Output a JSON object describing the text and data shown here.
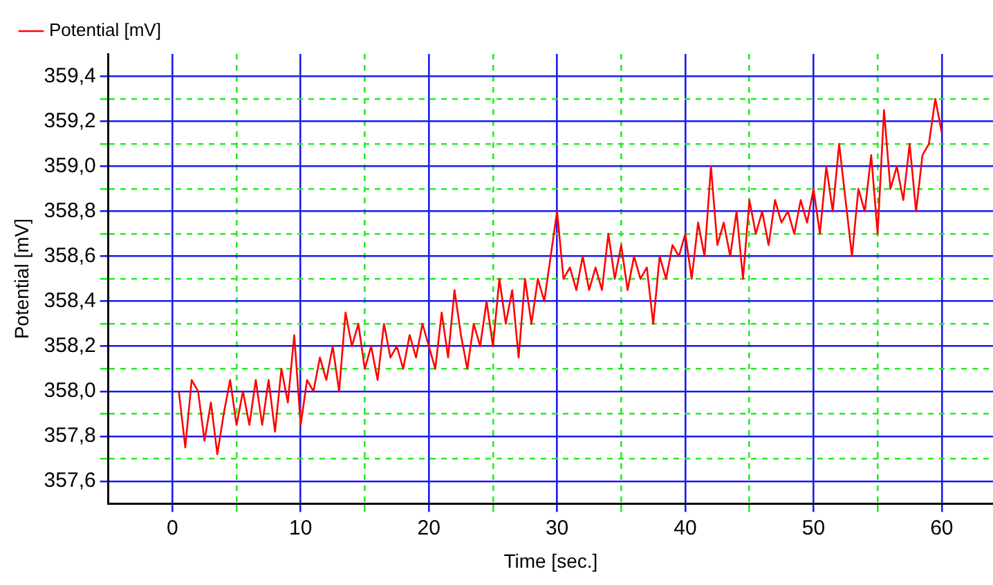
{
  "chart_data": {
    "type": "line",
    "xlabel": "Time [sec.]",
    "ylabel": "Potential [mV]",
    "x": [
      0.5,
      1,
      1.5,
      2,
      2.5,
      3,
      3.5,
      4,
      4.5,
      5,
      5.5,
      6,
      6.5,
      7,
      7.5,
      8,
      8.5,
      9,
      9.5,
      10,
      10.5,
      11,
      11.5,
      12,
      12.5,
      13,
      13.5,
      14,
      14.5,
      15,
      15.5,
      16,
      16.5,
      17,
      17.5,
      18,
      18.5,
      19,
      19.5,
      20,
      20.5,
      21,
      21.5,
      22,
      22.5,
      23,
      23.5,
      24,
      24.5,
      25,
      25.5,
      26,
      26.5,
      27,
      27.5,
      28,
      28.5,
      29,
      29.5,
      30,
      30.5,
      31,
      31.5,
      32,
      32.5,
      33,
      33.5,
      34,
      34.5,
      35,
      35.5,
      36,
      36.5,
      37,
      37.5,
      38,
      38.5,
      39,
      39.5,
      40,
      40.5,
      41,
      41.5,
      42,
      42.5,
      43,
      43.5,
      44,
      44.5,
      45,
      45.5,
      46,
      46.5,
      47,
      47.5,
      48,
      48.5,
      49,
      49.5,
      50,
      50.5,
      51,
      51.5,
      52,
      52.5,
      53,
      53.5,
      54,
      54.5,
      55,
      55.5,
      56,
      56.5,
      57,
      57.5,
      58,
      58.5,
      59,
      59.5,
      60
    ],
    "series": [
      {
        "name": "Potential [mV]",
        "color": "#ff0000",
        "values": [
          358.0,
          357.75,
          358.05,
          358.0,
          357.78,
          357.95,
          357.72,
          357.9,
          358.05,
          357.85,
          358.0,
          357.85,
          358.05,
          357.85,
          358.05,
          357.82,
          358.1,
          357.95,
          358.25,
          357.85,
          358.05,
          358.0,
          358.15,
          358.05,
          358.2,
          358.0,
          358.35,
          358.2,
          358.3,
          358.1,
          358.2,
          358.05,
          358.3,
          358.15,
          358.2,
          358.1,
          358.25,
          358.15,
          358.3,
          358.2,
          358.1,
          358.35,
          358.15,
          358.45,
          358.25,
          358.1,
          358.3,
          358.2,
          358.4,
          358.2,
          358.5,
          358.3,
          358.45,
          358.15,
          358.5,
          358.3,
          358.5,
          358.4,
          358.6,
          358.8,
          358.5,
          358.55,
          358.45,
          358.6,
          358.45,
          358.55,
          358.45,
          358.7,
          358.5,
          358.65,
          358.45,
          358.6,
          358.5,
          358.55,
          358.3,
          358.6,
          358.5,
          358.65,
          358.6,
          358.7,
          358.5,
          358.75,
          358.6,
          359.0,
          358.65,
          358.75,
          358.6,
          358.8,
          358.5,
          358.85,
          358.7,
          358.8,
          358.65,
          358.85,
          358.75,
          358.8,
          358.7,
          358.85,
          358.75,
          358.9,
          358.7,
          359.0,
          358.8,
          359.1,
          358.85,
          358.6,
          358.9,
          358.8,
          359.05,
          358.7,
          359.25,
          358.9,
          359.0,
          358.85,
          359.1,
          358.8,
          359.05,
          359.1,
          359.3,
          359.15
        ]
      }
    ],
    "xlim": [
      -5,
      64
    ],
    "xticks": [
      0,
      {
        "value": 5,
        "label": null
      },
      10,
      {
        "value": 15,
        "label": null
      },
      20,
      {
        "value": 25,
        "label": null
      },
      30,
      {
        "value": 35,
        "label": null
      },
      40,
      {
        "value": 45,
        "label": null
      },
      50,
      {
        "value": 55,
        "label": null
      },
      60
    ],
    "ylim": [
      357.5,
      359.5
    ],
    "yticks": [
      {
        "value": 357.6,
        "label": "357,6"
      },
      {
        "value": 357.7,
        "label": null
      },
      {
        "value": 357.8,
        "label": "357,8"
      },
      {
        "value": 357.9,
        "label": null
      },
      {
        "value": 358.0,
        "label": "358,0"
      },
      {
        "value": 358.1,
        "label": null
      },
      {
        "value": 358.2,
        "label": "358,2"
      },
      {
        "value": 358.3,
        "label": null
      },
      {
        "value": 358.4,
        "label": "358,4"
      },
      {
        "value": 358.5,
        "label": null
      },
      {
        "value": 358.6,
        "label": "358,6"
      },
      {
        "value": 358.7,
        "label": null
      },
      {
        "value": 358.8,
        "label": "358,8"
      },
      {
        "value": 358.9,
        "label": null
      },
      {
        "value": 359.0,
        "label": "359,0"
      },
      {
        "value": 359.1,
        "label": null
      },
      {
        "value": 359.2,
        "label": "359,2"
      },
      {
        "value": 359.3,
        "label": null
      },
      {
        "value": 359.4,
        "label": "359,4"
      }
    ],
    "grid": true,
    "legend": "top left",
    "marker": "none",
    "line_style": "solid"
  }
}
